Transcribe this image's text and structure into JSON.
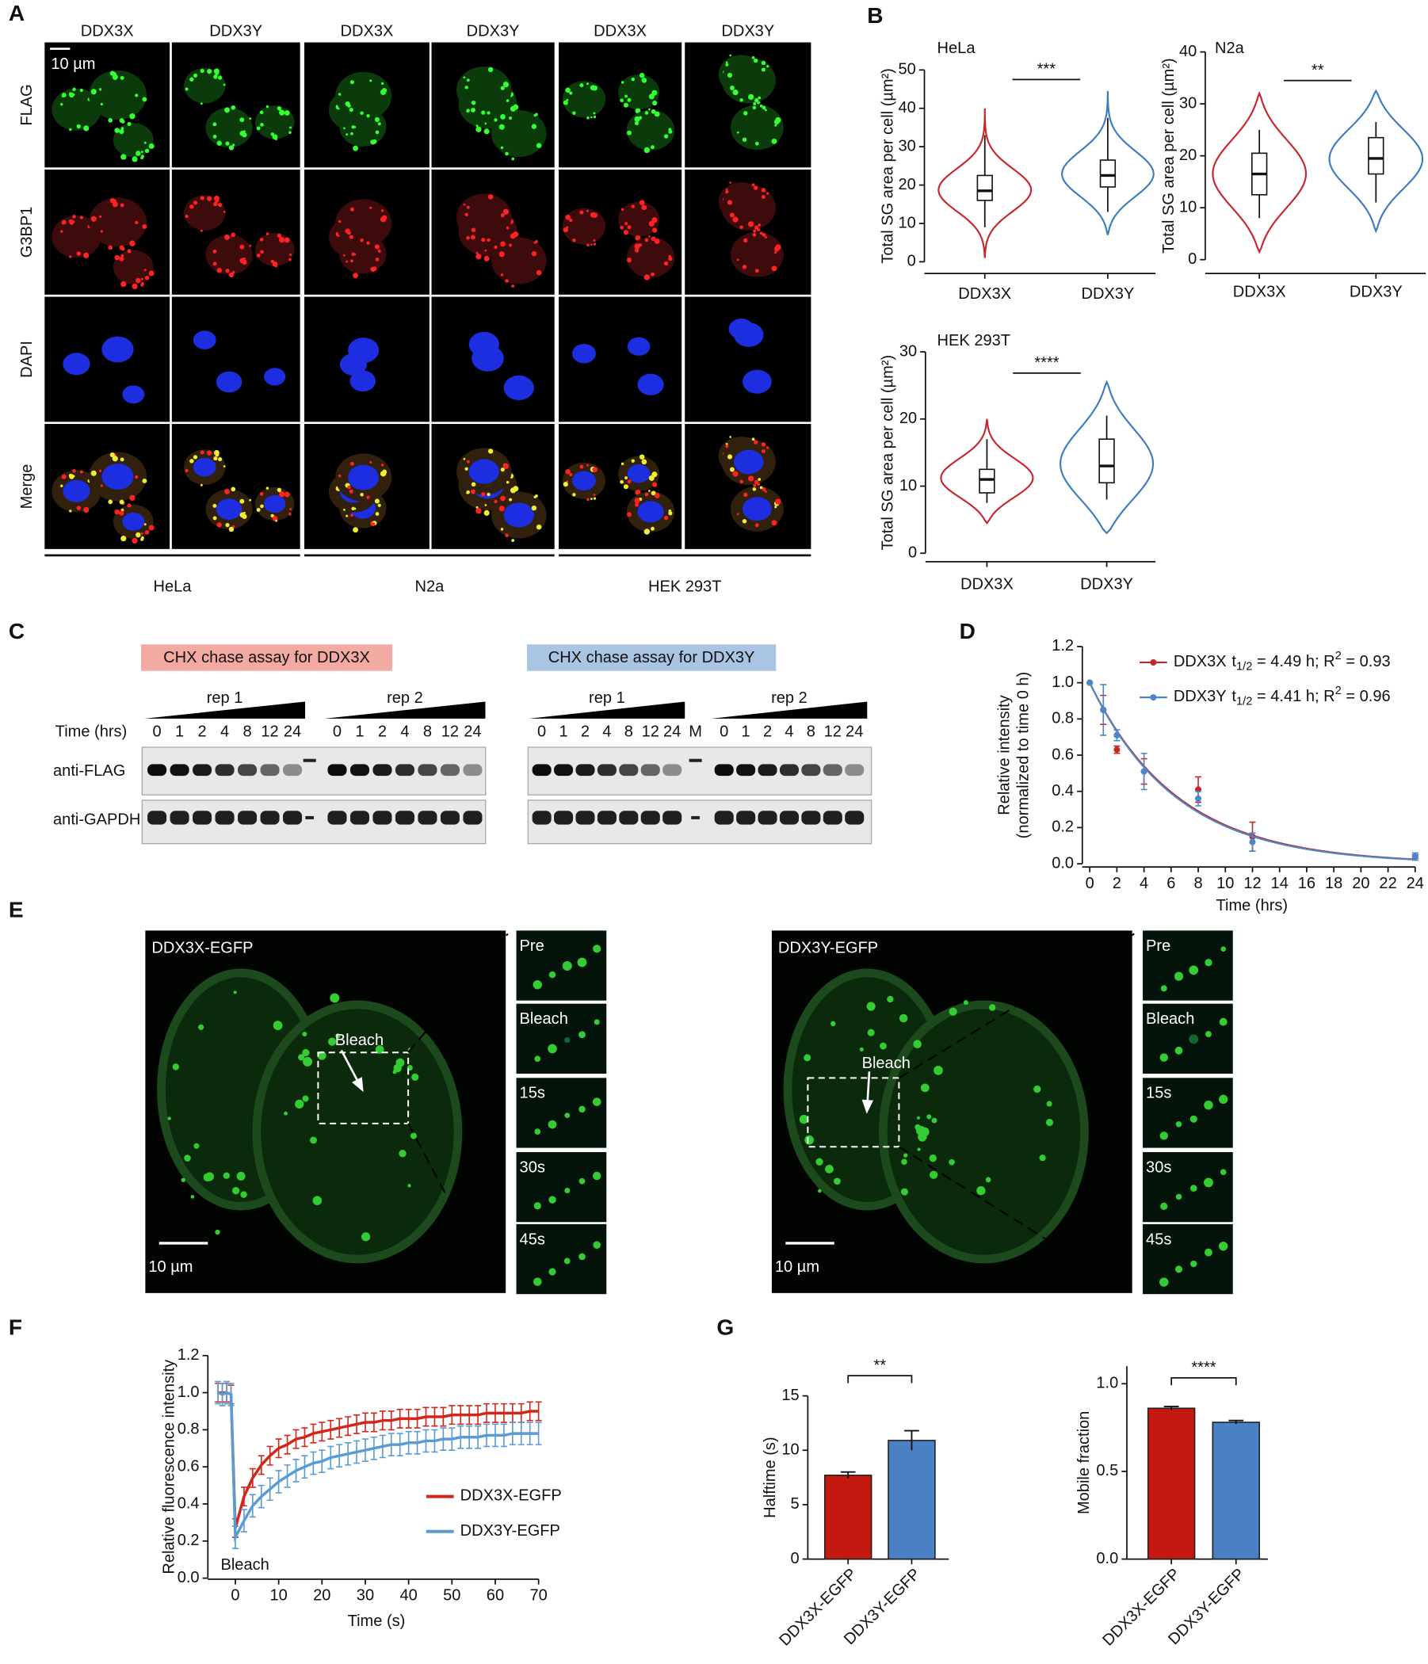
{
  "panel_labels": [
    "A",
    "B",
    "C",
    "D",
    "E",
    "F",
    "G"
  ],
  "panel_a": {
    "scale_bar": "10 µm",
    "columns": [
      "DDX3X",
      "DDX3Y",
      "DDX3X",
      "DDX3Y",
      "DDX3X",
      "DDX3Y"
    ],
    "rows": [
      "FLAG",
      "G3BP1",
      "DAPI",
      "Merge"
    ],
    "cell_lines": [
      "HeLa",
      "N2a",
      "HEK 293T"
    ]
  },
  "panel_c": {
    "time_label": "Time (hrs)",
    "time_points": [
      0,
      1,
      2,
      4,
      8,
      12,
      24
    ],
    "antibodies": [
      "anti-FLAG",
      "anti-GAPDH"
    ],
    "assays": [
      {
        "title": "CHX chase assay for DDX3X",
        "reps": [
          "rep 1",
          "rep 2"
        ]
      },
      {
        "title": "CHX chase assay for DDX3Y",
        "reps": [
          "rep 1",
          "rep 2"
        ],
        "marker": "M"
      }
    ]
  },
  "panel_e": {
    "panels": [
      {
        "title": "DDX3X-EGFP",
        "bleach": "Bleach",
        "scale_bar": "10 µm",
        "insets": [
          "Pre",
          "Bleach",
          "15s",
          "30s",
          "45s"
        ]
      },
      {
        "title": "DDX3Y-EGFP",
        "bleach": "Bleach",
        "scale_bar": "10 µm",
        "insets": [
          "Pre",
          "Bleach",
          "15s",
          "30s",
          "45s"
        ]
      }
    ]
  },
  "chart_data": [
    {
      "type": "violin",
      "title": "HeLa",
      "y_label": "Total SG area per cell (µm²)",
      "categories": [
        "DDX3X",
        "DDX3Y"
      ],
      "colors": [
        "#c7262e",
        "#3b7bbf"
      ],
      "ylim": [
        0,
        50
      ],
      "yticks": [
        0,
        10,
        20,
        30,
        40,
        50
      ],
      "significance": "***",
      "violins": [
        {
          "min": 1,
          "max": 40,
          "q1": 16,
          "median": 18.5,
          "q3": 22.5,
          "whisker_low": 9,
          "whisker_high": 33
        },
        {
          "min": 7,
          "max": 44.5,
          "q1": 19.5,
          "median": 22.5,
          "q3": 26.5,
          "whisker_low": 13,
          "whisker_high": 37.5
        }
      ]
    },
    {
      "type": "violin",
      "title": "N2a",
      "y_label": "Total SG area per cell (µm²)",
      "categories": [
        "DDX3X",
        "DDX3Y"
      ],
      "colors": [
        "#c7262e",
        "#3b7bbf"
      ],
      "ylim": [
        0,
        40
      ],
      "yticks": [
        0,
        10,
        20,
        30,
        40
      ],
      "significance": "**",
      "violins": [
        {
          "min": 1.5,
          "max": 32,
          "q1": 12.5,
          "median": 16.5,
          "q3": 20.5,
          "whisker_low": 8,
          "whisker_high": 25
        },
        {
          "min": 5.5,
          "max": 32.5,
          "q1": 16.5,
          "median": 19.5,
          "q3": 23.5,
          "whisker_low": 11,
          "whisker_high": 26.5
        }
      ]
    },
    {
      "type": "violin",
      "title": "HEK 293T",
      "y_label": "Total SG area per cell (µm²)",
      "categories": [
        "DDX3X",
        "DDX3Y"
      ],
      "colors": [
        "#c7262e",
        "#3b7bbf"
      ],
      "ylim": [
        0,
        30
      ],
      "yticks": [
        0,
        10,
        20,
        30
      ],
      "significance": "****",
      "violins": [
        {
          "min": 4.5,
          "max": 20,
          "q1": 9,
          "median": 11,
          "q3": 12.5,
          "whisker_low": 7.5,
          "whisker_high": 17
        },
        {
          "min": 3,
          "max": 25.5,
          "q1": 10.5,
          "median": 13,
          "q3": 17,
          "whisker_low": 8,
          "whisker_high": 20.5
        }
      ]
    },
    {
      "type": "line",
      "y_label": [
        "Relative intensity",
        "(normalized to time 0 h)"
      ],
      "x_label": "Time (hrs)",
      "x": [
        0,
        1,
        2,
        4,
        8,
        12,
        24
      ],
      "xlim": [
        0,
        24
      ],
      "xticks": [
        0,
        2,
        4,
        6,
        8,
        10,
        12,
        14,
        16,
        18,
        20,
        22,
        24
      ],
      "ylim": [
        0,
        1.2
      ],
      "yticks": [
        {
          "value": 0,
          "label": "0.0"
        },
        0.2,
        0.4,
        0.6,
        0.8,
        {
          "value": 1,
          "label": "1.0"
        },
        1.2
      ],
      "series": [
        {
          "name": "DDX3X",
          "legend": [
            "t",
            "1/2",
            " = 4.49 h; R",
            "2",
            " = 0.93"
          ],
          "color": "#c62828",
          "half_life": 4.49,
          "values": [
            1.0,
            0.85,
            0.63,
            0.51,
            0.41,
            0.15,
            0.04
          ],
          "errors": [
            0,
            0.08,
            0.02,
            0.07,
            0.07,
            0.08,
            0.01
          ]
        },
        {
          "name": "DDX3Y",
          "legend": [
            "t",
            "1/2",
            " = 4.41 h; R",
            "2",
            " = 0.96"
          ],
          "color": "#4a86c8",
          "half_life": 4.41,
          "values": [
            1.0,
            0.85,
            0.71,
            0.51,
            0.36,
            0.12,
            0.04
          ],
          "errors": [
            0,
            0.14,
            0.03,
            0.1,
            0.04,
            0.05,
            0.02
          ]
        }
      ]
    },
    {
      "type": "line",
      "y_label": "Relative fluorescence intensity",
      "x_label": "Time (s)",
      "annotation": "Bleach",
      "x": [
        -4,
        -3,
        -2,
        -1,
        0,
        2,
        4,
        6,
        8,
        10,
        12,
        14,
        16,
        18,
        20,
        22,
        24,
        26,
        28,
        30,
        32,
        34,
        36,
        38,
        40,
        42,
        44,
        46,
        48,
        50,
        52,
        54,
        56,
        58,
        60,
        62,
        64,
        66,
        68,
        70
      ],
      "xlim": [
        -5,
        70
      ],
      "xticks": [
        0,
        10,
        20,
        30,
        40,
        50,
        60,
        70
      ],
      "ylim": [
        0,
        1.2
      ],
      "yticks": [
        {
          "value": 0,
          "label": "0.0"
        },
        0.2,
        0.4,
        0.6,
        0.8,
        {
          "value": 1,
          "label": "1.0"
        },
        1.2
      ],
      "series": [
        {
          "name": "DDX3X-EGFP",
          "color": "#d3261a",
          "error": 0.05,
          "values": [
            1.0,
            1.0,
            1.0,
            0.99,
            0.27,
            0.44,
            0.54,
            0.61,
            0.66,
            0.7,
            0.72,
            0.75,
            0.76,
            0.78,
            0.79,
            0.8,
            0.81,
            0.82,
            0.83,
            0.84,
            0.84,
            0.85,
            0.85,
            0.86,
            0.86,
            0.86,
            0.87,
            0.87,
            0.87,
            0.88,
            0.88,
            0.88,
            0.88,
            0.89,
            0.89,
            0.89,
            0.89,
            0.89,
            0.9,
            0.9
          ]
        },
        {
          "name": "DDX3Y-EGFP",
          "color": "#5b9bd5",
          "error": 0.06,
          "values": [
            1.0,
            0.99,
            1.0,
            0.99,
            0.22,
            0.31,
            0.39,
            0.44,
            0.48,
            0.52,
            0.55,
            0.58,
            0.6,
            0.62,
            0.63,
            0.65,
            0.66,
            0.67,
            0.68,
            0.69,
            0.7,
            0.71,
            0.72,
            0.72,
            0.73,
            0.73,
            0.74,
            0.74,
            0.75,
            0.75,
            0.76,
            0.76,
            0.76,
            0.77,
            0.77,
            0.77,
            0.78,
            0.78,
            0.78,
            0.78
          ]
        }
      ]
    },
    {
      "type": "bar",
      "y_label": "Halftime (s)",
      "categories": [
        "DDX3X-EGFP",
        "DDX3Y-EGFP"
      ],
      "colors": [
        "#c4190f",
        "#4a80c4"
      ],
      "values": [
        7.7,
        10.9
      ],
      "errors": [
        0.3,
        0.9
      ],
      "ylim": [
        0,
        15
      ],
      "yticks": [
        0,
        5,
        10,
        15
      ],
      "significance": "**"
    },
    {
      "type": "bar",
      "y_label": "Mobile fraction",
      "categories": [
        "DDX3X-EGFP",
        "DDX3Y-EGFP"
      ],
      "colors": [
        "#c4190f",
        "#4a80c4"
      ],
      "values": [
        0.86,
        0.78
      ],
      "errors": [
        0.01,
        0.01
      ],
      "ylim": [
        0,
        1.1
      ],
      "yticks": [
        {
          "value": 0,
          "label": "0.0"
        },
        0.5,
        {
          "value": 1,
          "label": "1.0"
        }
      ],
      "significance": "****"
    }
  ]
}
